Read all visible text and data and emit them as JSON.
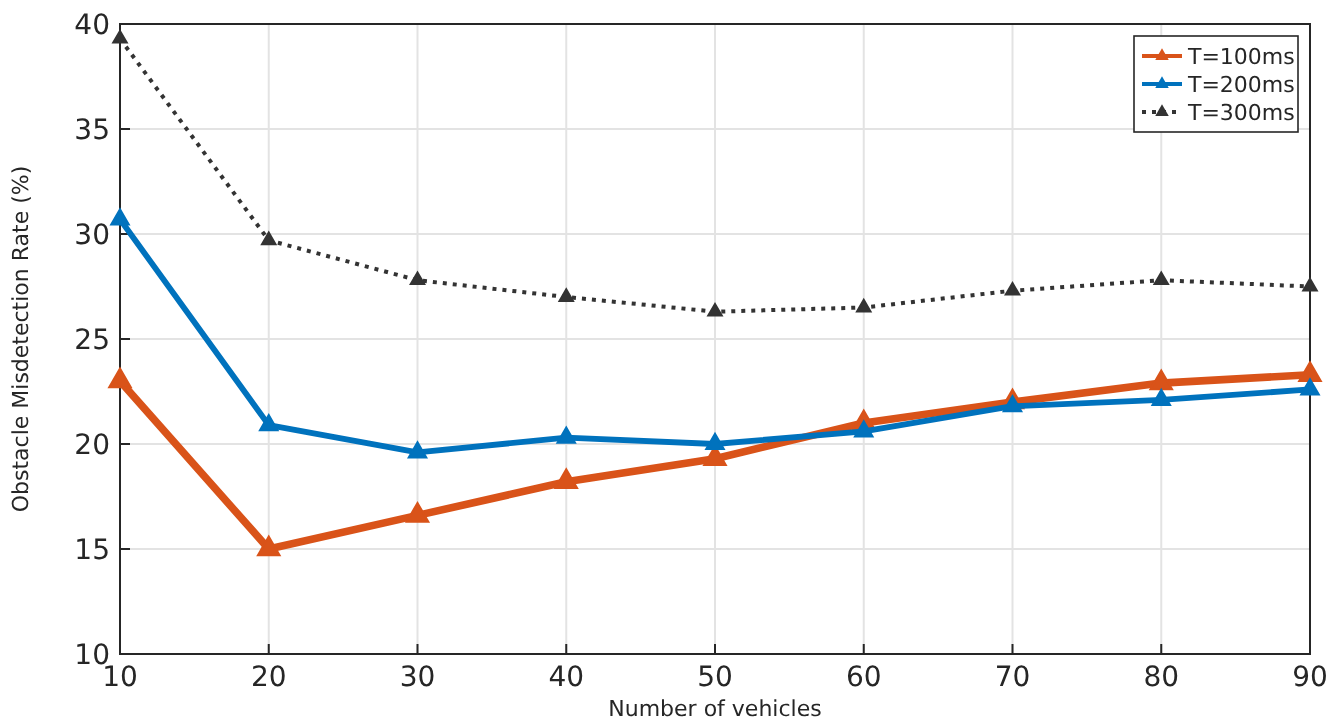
{
  "chart_data": {
    "type": "line",
    "xlabel": "Number of vehicles",
    "ylabel": "Obstacle Misdetection Rate (%)",
    "x": [
      10,
      20,
      30,
      40,
      50,
      60,
      70,
      80,
      90
    ],
    "xlim": [
      10,
      90
    ],
    "xticks": [
      10,
      20,
      30,
      40,
      50,
      60,
      70,
      80,
      90
    ],
    "ylim": [
      10,
      40
    ],
    "yticks": [
      10,
      15,
      20,
      25,
      30,
      35,
      40
    ],
    "grid": true,
    "legend": "top right",
    "marker": "triangle",
    "series": [
      {
        "name": "T=100ms",
        "color": "#d95319",
        "line_style": "solid",
        "values": [
          23.0,
          15.0,
          16.6,
          18.2,
          19.3,
          21.0,
          22.0,
          22.9,
          23.3
        ]
      },
      {
        "name": "T=200ms",
        "color": "#0072bd",
        "line_style": "solid",
        "values": [
          30.7,
          20.9,
          19.6,
          20.3,
          20.0,
          20.6,
          21.8,
          22.1,
          22.6
        ]
      },
      {
        "name": "T=300ms",
        "color": "#333333",
        "line_style": "dotted",
        "values": [
          39.3,
          29.7,
          27.8,
          27.0,
          26.3,
          26.5,
          27.3,
          27.8,
          27.5
        ]
      }
    ]
  }
}
